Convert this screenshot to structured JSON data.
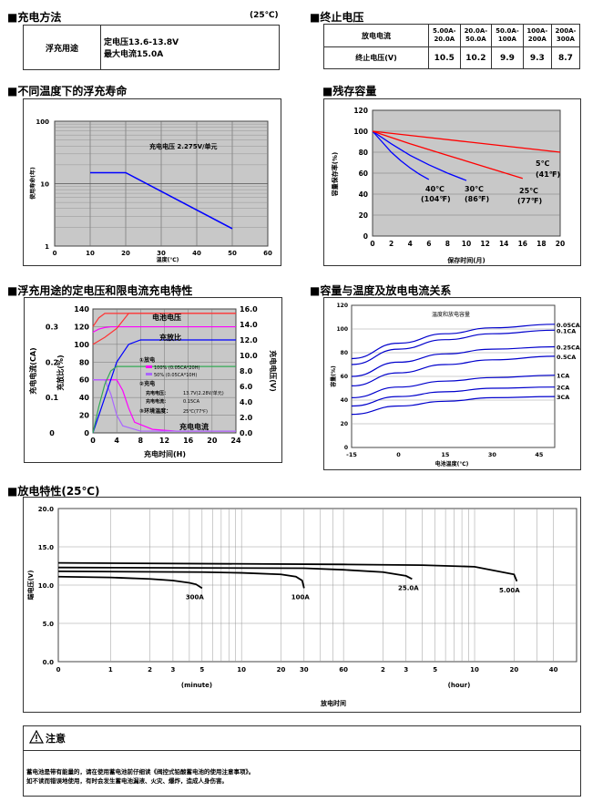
{
  "charge": {
    "title": "■充电方法",
    "temp": "(25℃)",
    "label": "浮充用途",
    "line1": "定电压13.6-13.8V",
    "line2": "最大电流15.0A"
  },
  "endv": {
    "title": "■终止电压",
    "row1_label": "放电电流",
    "row2_label": "终止电压(V)",
    "headers": [
      "5.00A-\n20.0A",
      "20.0A-\n50.0A",
      "50.0A-\n100A",
      "100A-\n200A",
      "200A-\n300A"
    ],
    "values": [
      "10.5",
      "10.2",
      "9.9",
      "9.3",
      "8.7"
    ]
  },
  "life": {
    "title": "■不同温度下的浮充寿命",
    "ylabel": "使用寿命(年)",
    "xlabel": "温度(℃)",
    "annotation": "充电电压     2.275V/单元",
    "yticks": [
      "100",
      "10",
      "1"
    ],
    "xticks": [
      "10",
      "20",
      "30",
      "40",
      "50",
      "60"
    ]
  },
  "residual": {
    "title": "■残存容量",
    "ylabel": "容量保存率(%)",
    "xlabel": "保存时间(月)",
    "yticks": [
      "0",
      "20",
      "40",
      "60",
      "80",
      "100",
      "120"
    ],
    "xticks": [
      "0",
      "2",
      "4",
      "6",
      "8",
      "10",
      "12",
      "14",
      "16",
      "18",
      "20"
    ],
    "labels": [
      {
        "t": "40℃",
        "f": "(104℉)"
      },
      {
        "t": "30℃",
        "f": "(86℉)"
      },
      {
        "t": "25℃",
        "f": "(77℉)"
      },
      {
        "t": "5℃",
        "f": "(41℉)"
      }
    ]
  },
  "floatchar": {
    "title": "■浮充用途的定电压和限电流充电特性",
    "left_yticks_a": [
      "0",
      "0.1",
      "0.2",
      "0.3"
    ],
    "left_yticks_b": [
      "0",
      "20",
      "40",
      "60",
      "80",
      "100",
      "120",
      "140"
    ],
    "right_yticks": [
      "0.0",
      "2.0",
      "4.0",
      "6.0",
      "8.0",
      "10.0",
      "12.0",
      "14.0",
      "16.0"
    ],
    "xticks": [
      "0",
      "4",
      "8",
      "12",
      "16",
      "20",
      "24"
    ],
    "ylabel_a": "充电电流(CA)",
    "ylabel_b": "充放比(%)",
    "ylabel_r": "充电电压(V)",
    "xlabel": "充电时间(H)",
    "lbl_voltage": "电池电压",
    "lbl_ratio": "充放比",
    "lbl_current": "充电电流",
    "legend": {
      "d1": "①放电",
      "d2": "100% (0.05CA*20H)",
      "d3": "50% (0.05CA*10H)",
      "c1": "②充电",
      "c2": "充电电压：",
      "c2v": "13.7V(2.28V/单元)",
      "c3": "充电电流：",
      "c3v": "0.15CA",
      "c4": "③环境温度：",
      "c4v": "25℃(77℉)"
    }
  },
  "captemp": {
    "title": "■容量与温度及放电电流关系",
    "inner_title": "温度和放电容量",
    "ylabel": "容量(%)",
    "xlabel": "电池温度(℃)",
    "yticks": [
      "0",
      "20",
      "40",
      "60",
      "80",
      "100",
      "120"
    ],
    "xticks": [
      "-15",
      "0",
      "15",
      "30",
      "45"
    ],
    "curves": [
      "0.05CA",
      "0.1CA",
      "0.25CA",
      "0.5CA",
      "1CA",
      "2CA",
      "3CA"
    ]
  },
  "discharge": {
    "title": "■放电特性(25℃)",
    "ylabel": "端电压(V)",
    "xlabel": "放电时间",
    "unit_min": "(minute)",
    "unit_hour": "(hour)",
    "yticks": [
      "0.0",
      "5.0",
      "10.0",
      "15.0",
      "20.0"
    ],
    "xticks_min": [
      "0",
      "1",
      "2",
      "3",
      "5",
      "10",
      "20",
      "30",
      "60"
    ],
    "xticks_hr": [
      "2",
      "3",
      "5",
      "10",
      "20",
      "40"
    ],
    "curves": [
      "300A",
      "100A",
      "25.0A",
      "5.00A"
    ]
  },
  "caution": {
    "title": "注意",
    "line1": "蓄电池是带有能量的，请在使用蓄电池前仔细读《阀控式铅酸蓄电池的使用注意事项》。",
    "line2": "如不读而错误地使用，有时会发生蓄电池漏液、火灾、爆炸，造成人身伤害。"
  },
  "chart_data": [
    {
      "type": "line",
      "title": "不同温度下的浮充寿命",
      "xlabel": "温度(℃)",
      "ylabel": "使用寿命(年)",
      "yscale": "log",
      "xlim": [
        0,
        60
      ],
      "ylim": [
        1,
        100
      ],
      "x": [
        10,
        20,
        50
      ],
      "values": [
        15,
        15,
        1.9
      ]
    },
    {
      "type": "line",
      "title": "残存容量",
      "xlabel": "保存时间(月)",
      "ylabel": "容量保存率(%)",
      "xlim": [
        0,
        20
      ],
      "ylim": [
        0,
        120
      ],
      "series": [
        {
          "name": "40℃(104℉)",
          "x": [
            0,
            1,
            2,
            3,
            4,
            5,
            6
          ],
          "values": [
            100,
            90,
            80,
            72,
            65,
            59,
            54
          ]
        },
        {
          "name": "30℃(86℉)",
          "x": [
            0,
            2,
            4,
            6,
            8,
            10
          ],
          "values": [
            100,
            88,
            77,
            68,
            60,
            53
          ]
        },
        {
          "name": "25℃(77℉)",
          "x": [
            0,
            4,
            8,
            12,
            16
          ],
          "values": [
            100,
            88,
            77,
            66,
            55
          ]
        },
        {
          "name": "5℃(41℉)",
          "x": [
            0,
            5,
            10,
            15,
            20
          ],
          "values": [
            100,
            95,
            90,
            85,
            80
          ]
        }
      ]
    },
    {
      "type": "line",
      "title": "浮充用途的定电压和限电流充电特性",
      "xlabel": "充电时间(H)",
      "xlim": [
        0,
        24
      ],
      "series": [
        {
          "name": "电池电压",
          "axis": "right",
          "x": [
            0,
            1,
            2,
            3,
            4,
            24
          ],
          "values": [
            13.0,
            13.4,
            13.6,
            13.7,
            13.7,
            13.7
          ]
        },
        {
          "name": "充放比 100%",
          "axis": "left",
          "x": [
            0,
            2,
            4,
            6,
            24
          ],
          "values": [
            100,
            108,
            118,
            135,
            135
          ]
        },
        {
          "name": "充放比 50%",
          "axis": "left",
          "x": [
            0,
            1,
            2,
            4,
            24
          ],
          "values": [
            120,
            130,
            135,
            135,
            135
          ]
        },
        {
          "name": "充电电流 100%",
          "axis": "left",
          "x": [
            0,
            4,
            5,
            6,
            7,
            10,
            14,
            24
          ],
          "values": [
            0.15,
            0.15,
            0.12,
            0.07,
            0.03,
            0.01,
            0.005,
            0.005
          ]
        },
        {
          "name": "充电电流 50%",
          "axis": "left",
          "x": [
            0,
            2,
            3,
            4,
            5,
            8,
            24
          ],
          "values": [
            0.15,
            0.15,
            0.11,
            0.05,
            0.02,
            0.005,
            0.005
          ]
        },
        {
          "name": "充电量 100%",
          "axis": "left",
          "x": [
            0,
            2,
            4,
            6,
            8,
            24
          ],
          "values": [
            0,
            40,
            80,
            100,
            105,
            105
          ]
        },
        {
          "name": "充电量 50%",
          "axis": "left",
          "x": [
            0,
            1,
            2,
            3,
            4,
            24
          ],
          "values": [
            0,
            30,
            55,
            70,
            75,
            75
          ]
        }
      ]
    },
    {
      "type": "line",
      "title": "温度和放电容量",
      "xlabel": "电池温度(℃)",
      "ylabel": "容量(%)",
      "xlim": [
        -15,
        50
      ],
      "ylim": [
        0,
        120
      ],
      "series": [
        {
          "name": "0.05CA",
          "x": [
            -15,
            0,
            15,
            30,
            50
          ],
          "values": [
            75,
            88,
            96,
            101,
            104
          ]
        },
        {
          "name": "0.1CA",
          "x": [
            -15,
            0,
            15,
            30,
            50
          ],
          "values": [
            70,
            83,
            91,
            96,
            99
          ]
        },
        {
          "name": "0.25CA",
          "x": [
            -15,
            0,
            15,
            30,
            50
          ],
          "values": [
            60,
            72,
            79,
            83,
            85
          ]
        },
        {
          "name": "0.5CA",
          "x": [
            -15,
            0,
            15,
            30,
            50
          ],
          "values": [
            52,
            63,
            70,
            74,
            77
          ]
        },
        {
          "name": "1CA",
          "x": [
            -15,
            0,
            15,
            30,
            50
          ],
          "values": [
            42,
            51,
            56,
            59,
            61
          ]
        },
        {
          "name": "2CA",
          "x": [
            -15,
            0,
            15,
            30,
            50
          ],
          "values": [
            35,
            43,
            47,
            50,
            51
          ]
        },
        {
          "name": "3CA",
          "x": [
            -15,
            0,
            15,
            30,
            50
          ],
          "values": [
            28,
            35,
            39,
            42,
            43
          ]
        }
      ]
    },
    {
      "type": "line",
      "title": "放电特性(25℃)",
      "xlabel": "放电时间",
      "ylabel": "端电压(V)",
      "xscale": "log",
      "ylim": [
        0,
        20
      ],
      "series": [
        {
          "name": "300A",
          "x_minutes": [
            0.4,
            1,
            2,
            3,
            4,
            4.5,
            5
          ],
          "values": [
            11.1,
            11.0,
            10.8,
            10.6,
            10.3,
            10.1,
            9.6
          ]
        },
        {
          "name": "100A",
          "x_minutes": [
            0.4,
            5,
            10,
            20,
            26,
            29,
            30
          ],
          "values": [
            11.8,
            11.7,
            11.6,
            11.4,
            11.1,
            10.6,
            9.6
          ]
        },
        {
          "name": "25.0A",
          "x_minutes": [
            0.4,
            30,
            60,
            120,
            180,
            200
          ],
          "values": [
            12.3,
            12.2,
            12.0,
            11.7,
            11.2,
            10.8
          ]
        },
        {
          "name": "5.00A",
          "x_minutes": [
            0.4,
            60,
            240,
            600,
            1200,
            1260
          ],
          "values": [
            12.9,
            12.7,
            12.6,
            12.4,
            11.4,
            10.5
          ]
        }
      ]
    }
  ]
}
